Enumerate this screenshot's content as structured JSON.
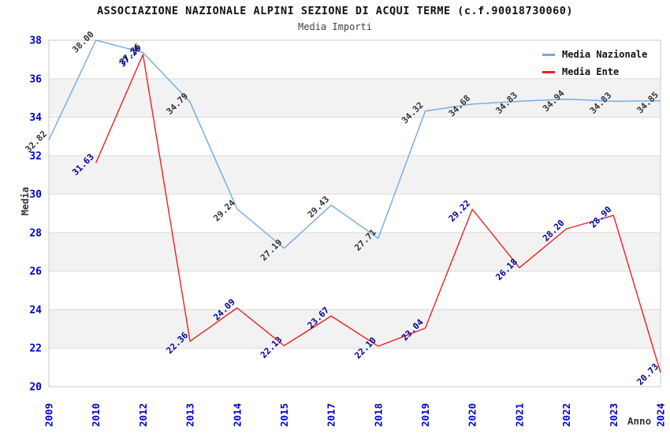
{
  "header": {
    "title": "ASSOCIAZIONE NAZIONALE ALPINI SEZIONE DI ACQUI TERME (c.f.90018730060)",
    "subtitle": "Media Importi"
  },
  "legend": {
    "items": [
      {
        "label": "Media Nazionale",
        "color": "#74A9E2"
      },
      {
        "label": "Media Ente",
        "color": "#EE2020"
      }
    ]
  },
  "chart_data": {
    "type": "line",
    "title": "ASSOCIAZIONE NAZIONALE ALPINI SEZIONE DI ACQUI TERME (c.f.90018730060)",
    "subtitle": "Media Importi",
    "xlabel": "Anno",
    "ylabel": "Media",
    "categories": [
      "2009",
      "2010",
      "2012",
      "2013",
      "2014",
      "2015",
      "2017",
      "2018",
      "2019",
      "2020",
      "2021",
      "2022",
      "2023",
      "2024"
    ],
    "series": [
      {
        "name": "Media Nazionale",
        "color": "#74A9E2",
        "label_color": "#333333",
        "values": [
          32.82,
          38.0,
          37.36,
          34.79,
          29.24,
          27.19,
          29.43,
          27.71,
          34.32,
          34.68,
          34.83,
          34.94,
          34.83,
          34.85
        ]
      },
      {
        "name": "Media Ente",
        "color": "#EE2020",
        "label_color": "#000099",
        "values": [
          null,
          31.63,
          37.26,
          22.36,
          24.09,
          22.13,
          23.67,
          22.1,
          23.04,
          29.22,
          26.18,
          28.2,
          28.9,
          20.73
        ]
      }
    ],
    "ylim": [
      20,
      38
    ],
    "ytick_step": 2,
    "yticks": [
      38,
      36,
      34,
      32,
      30,
      28,
      26,
      24,
      22,
      20
    ],
    "grid": "horizontal-only",
    "alternating_bands": true,
    "legend_position": "top-right",
    "tick_label_color": "#0000CC",
    "band_color": "#F2F2F2",
    "gridline_color": "#DCDCDC",
    "border_color": "#C8C8C8"
  }
}
